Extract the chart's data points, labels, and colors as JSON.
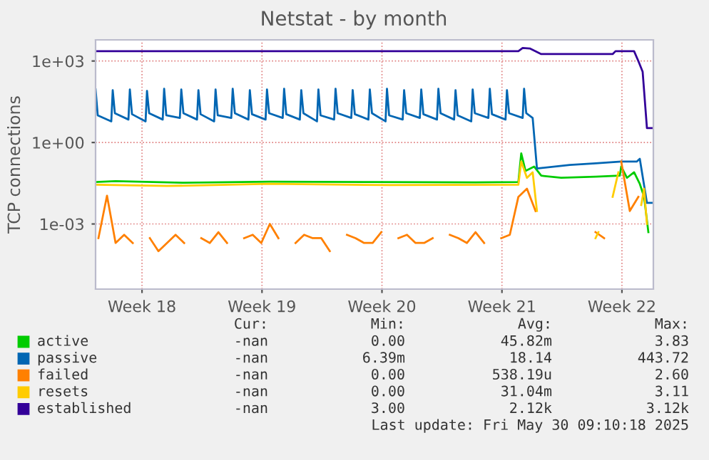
{
  "chart_data": {
    "type": "line",
    "title": "Netstat - by month",
    "ylabel": "TCP connections",
    "log": "y",
    "grid": true,
    "legend": "bottom",
    "marker": "none",
    "line_style": "solid",
    "xlim": [
      "2025-04-27T20:00",
      "2025-05-30T09:00"
    ],
    "xticks": [
      {
        "value": "2025-04-30T13:00",
        "label": "Week 18"
      },
      {
        "value": "2025-05-07T13:00",
        "label": "Week 19"
      },
      {
        "value": "2025-05-14T13:00",
        "label": "Week 20"
      },
      {
        "value": "2025-05-21T13:00",
        "label": "Week 21"
      },
      {
        "value": "2025-05-28T13:00",
        "label": "Week 22"
      }
    ],
    "ylim": [
      4e-06,
      6000
    ],
    "yticks": [
      {
        "value": 1000,
        "label": "1e+03"
      },
      {
        "value": 1,
        "label": "1e+00"
      },
      {
        "value": 0.001,
        "label": "1e-03"
      }
    ],
    "annotations": [
      "Cur:",
      "Min:",
      "Avg:",
      "Max:",
      "-nan",
      "0.00",
      "45.82m",
      "3.83",
      "-nan",
      "6.39m",
      "18.14",
      "443.72",
      "-nan",
      "0.00",
      "538.19u",
      "2.60",
      "-nan",
      "0.00",
      "31.04m",
      "3.11",
      "-nan",
      "3.00",
      "2.12k",
      "3.12k",
      "Last update: Fri May 30 09:10:18 2025"
    ],
    "series": [
      {
        "name": "active",
        "color": "#00cc00",
        "x": [
          "2025-04-27T20:00",
          "2025-04-29",
          "2025-05-03",
          "2025-05-08",
          "2025-05-14",
          "2025-05-20",
          "2025-05-22T12:00",
          "2025-05-22T16:00",
          "2025-05-22T22:00",
          "2025-05-23T10:00",
          "2025-05-23T20:00",
          "2025-05-25",
          "2025-05-27",
          "2025-05-28T10:00",
          "2025-05-28T12:00",
          "2025-05-28T20:00",
          "2025-05-29T06:00",
          "2025-05-29T14:00",
          "2025-05-29T20:00",
          "2025-05-30T02:00"
        ],
        "values": [
          0.035,
          0.038,
          0.033,
          0.036,
          0.035,
          0.034,
          0.035,
          0.4,
          0.09,
          0.13,
          0.06,
          0.05,
          0.055,
          0.06,
          0.13,
          0.05,
          0.08,
          0.03,
          0.01,
          0.0005
        ]
      },
      {
        "name": "passive",
        "color": "#0066b3",
        "x": [
          "2025-04-27T20:00",
          "2025-04-27T23:00",
          "2025-04-28T18:00",
          "2025-04-28T20:00",
          "2025-04-28T23:00",
          "2025-04-29T18:00",
          "2025-04-29T20:00",
          "2025-04-29T23:00",
          "2025-04-30T18:00",
          "2025-04-30T20:00",
          "2025-04-30T23:00",
          "2025-05-01T18:00",
          "2025-05-01T20:00",
          "2025-05-01T23:00",
          "2025-05-02T18:00",
          "2025-05-02T20:00",
          "2025-05-02T23:00",
          "2025-05-03T18:00",
          "2025-05-03T20:00",
          "2025-05-03T23:00",
          "2025-05-04T18:00",
          "2025-05-04T20:00",
          "2025-05-04T23:00",
          "2025-05-05T18:00",
          "2025-05-05T20:00",
          "2025-05-05T23:00",
          "2025-05-06T18:00",
          "2025-05-06T20:00",
          "2025-05-06T23:00",
          "2025-05-07T18:00",
          "2025-05-07T20:00",
          "2025-05-07T23:00",
          "2025-05-08T18:00",
          "2025-05-08T20:00",
          "2025-05-08T23:00",
          "2025-05-09T18:00",
          "2025-05-09T20:00",
          "2025-05-09T23:00",
          "2025-05-10T18:00",
          "2025-05-10T20:00",
          "2025-05-10T23:00",
          "2025-05-11T18:00",
          "2025-05-11T20:00",
          "2025-05-11T23:00",
          "2025-05-12T18:00",
          "2025-05-12T20:00",
          "2025-05-12T23:00",
          "2025-05-13T18:00",
          "2025-05-13T20:00",
          "2025-05-13T23:00",
          "2025-05-14T18:00",
          "2025-05-14T20:00",
          "2025-05-14T23:00",
          "2025-05-15T18:00",
          "2025-05-15T20:00",
          "2025-05-15T23:00",
          "2025-05-16T18:00",
          "2025-05-16T20:00",
          "2025-05-16T23:00",
          "2025-05-17T18:00",
          "2025-05-17T20:00",
          "2025-05-17T23:00",
          "2025-05-18T18:00",
          "2025-05-18T20:00",
          "2025-05-18T23:00",
          "2025-05-19T18:00",
          "2025-05-19T20:00",
          "2025-05-19T23:00",
          "2025-05-20T18:00",
          "2025-05-20T20:00",
          "2025-05-20T23:00",
          "2025-05-21T18:00",
          "2025-05-21T20:00",
          "2025-05-21T23:00",
          "2025-05-22T18:00",
          "2025-05-22T20:00",
          "2025-05-22T23:00",
          "2025-05-23T08:00",
          "2025-05-23T14:00",
          "2025-05-25T12:00",
          "2025-05-27T00:00",
          "2025-05-28T12:00",
          "2025-05-29T10:00",
          "2025-05-29T14:00",
          "2025-05-30T00:00",
          "2025-05-30T08:00"
        ],
        "values": [
          90,
          10,
          6,
          85,
          12,
          7,
          90,
          11,
          6,
          80,
          12,
          7,
          95,
          10,
          8,
          90,
          12,
          7,
          85,
          11,
          6,
          90,
          10,
          8,
          95,
          12,
          7,
          85,
          11,
          7,
          90,
          12,
          8,
          95,
          11,
          7,
          85,
          12,
          6,
          90,
          10,
          7,
          95,
          12,
          8,
          85,
          11,
          7,
          90,
          12,
          6,
          95,
          10,
          7,
          85,
          12,
          8,
          90,
          11,
          7,
          95,
          12,
          7,
          85,
          10,
          6,
          90,
          12,
          8,
          95,
          11,
          7,
          85,
          12,
          8,
          95,
          12,
          8,
          0.11,
          0.15,
          0.17,
          0.2,
          0.2,
          0.25,
          0.006,
          0.006
        ]
      },
      {
        "name": "failed",
        "color": "#ff8000",
        "x": [
          "2025-04-28T00:00",
          "2025-04-28T12:00",
          "2025-04-29T00:00",
          "2025-04-29T12:00",
          "2025-04-30T00:00",
          "2025-04-30T12:00",
          "2025-05-01T00:00",
          "2025-05-01T12:00",
          "2025-05-02T00:00",
          "2025-05-02T12:00",
          "2025-05-03T00:00",
          "2025-05-03T12:00",
          "2025-05-04T00:00",
          "2025-05-04T12:00",
          "2025-05-05T00:00",
          "2025-05-05T12:00",
          "2025-05-06T00:00",
          "2025-05-06T12:00",
          "2025-05-07T00:00",
          "2025-05-07T12:00",
          "2025-05-08T00:00",
          "2025-05-08T12:00",
          "2025-05-09T00:00",
          "2025-05-09T12:00",
          "2025-05-10T00:00",
          "2025-05-10T12:00",
          "2025-05-11T00:00",
          "2025-05-11T12:00",
          "2025-05-12T00:00",
          "2025-05-12T12:00",
          "2025-05-13T00:00",
          "2025-05-13T12:00",
          "2025-05-14T00:00",
          "2025-05-14T12:00",
          "2025-05-15T00:00",
          "2025-05-15T12:00",
          "2025-05-16T00:00",
          "2025-05-16T12:00",
          "2025-05-17T00:00",
          "2025-05-17T12:00",
          "2025-05-18T00:00",
          "2025-05-18T12:00",
          "2025-05-19T00:00",
          "2025-05-19T12:00",
          "2025-05-20T00:00",
          "2025-05-20T12:00",
          "2025-05-21T00:00",
          "2025-05-21T12:00",
          "2025-05-22T00:00",
          "2025-05-22T12:00",
          "2025-05-23T00:00",
          "2025-05-23T12:00",
          "2025-05-24T00:00",
          "2025-05-24T12:00",
          "2025-05-25T00:00",
          "2025-05-25T12:00",
          "2025-05-26T00:00",
          "2025-05-26T12:00",
          "2025-05-27T00:00",
          "2025-05-27T12:00",
          "2025-05-28T00:00",
          "2025-05-28T12:00",
          "2025-05-29T00:00",
          "2025-05-29T12:00"
        ],
        "values": [
          0.0003,
          0.011,
          0.0002,
          0.0004,
          0.0002,
          null,
          0.0003,
          0.0001,
          0.0002,
          0.0004,
          0.0002,
          null,
          0.0003,
          0.0002,
          0.0005,
          0.0002,
          null,
          0.0003,
          0.0004,
          0.0002,
          0.001,
          0.0003,
          null,
          0.0002,
          0.0004,
          0.0003,
          0.0003,
          0.0001,
          null,
          0.0004,
          0.0003,
          0.0002,
          0.0002,
          0.0005,
          null,
          0.0003,
          0.0004,
          0.0002,
          0.0002,
          0.0003,
          null,
          0.0004,
          0.0003,
          0.0002,
          0.0005,
          0.0002,
          null,
          0.0003,
          0.0004,
          0.01,
          0.02,
          0.003,
          null,
          null,
          null,
          null,
          null,
          null,
          0.0005,
          0.0003,
          null,
          0.2,
          0.003,
          0.01
        ]
      },
      {
        "name": "resets",
        "color": "#ffcc00",
        "x": [
          "2025-04-27T20:00",
          "2025-05-02",
          "2025-05-08",
          "2025-05-15",
          "2025-05-22T12:00",
          "2025-05-22T16:00",
          "2025-05-23T00:00",
          "2025-05-23T08:00",
          "2025-05-23T14:00",
          "2025-05-23T20:00",
          "2025-05-27T00:00",
          "2025-05-27T04:00",
          "2025-05-27T08:00",
          "2025-05-28T00:00",
          "2025-05-28T08:00",
          "2025-05-28T12:00",
          "2025-05-29T12:00",
          "2025-05-29T16:00",
          "2025-05-29T20:00",
          "2025-05-30T00:00"
        ],
        "values": [
          0.028,
          0.025,
          0.03,
          0.027,
          0.028,
          0.2,
          0.05,
          0.08,
          0.003,
          null,
          0.0003,
          0.0005,
          null,
          0.01,
          0.08,
          null,
          null,
          0.005,
          0.02,
          0.001
        ]
      },
      {
        "name": "established",
        "color": "#330099",
        "x": [
          "2025-04-27T20:00",
          "2025-05-22T12:00",
          "2025-05-22T18:00",
          "2025-05-23T04:00",
          "2025-05-23T20:00",
          "2025-05-28T00:00",
          "2025-05-28T04:00",
          "2025-05-29T06:00",
          "2025-05-29T12:00",
          "2025-05-29T18:00",
          "2025-05-30T00:00",
          "2025-05-30T08:00"
        ],
        "values": [
          2300,
          2300,
          3000,
          2900,
          1800,
          1800,
          2300,
          2300,
          1000,
          400,
          3.4,
          3.4
        ]
      }
    ]
  }
}
